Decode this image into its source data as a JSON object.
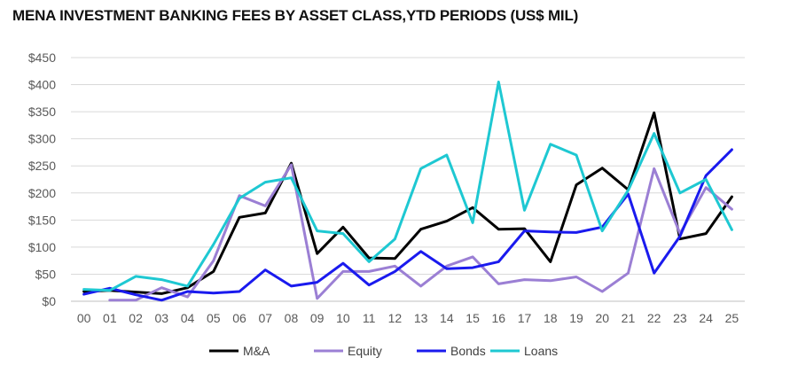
{
  "chart_data": {
    "type": "line",
    "title": "MENA INVESTMENT BANKING FEES BY ASSET CLASS,YTD PERIODS (US$ MIL)",
    "xlabel": "",
    "ylabel": "",
    "categories": [
      "00",
      "01",
      "02",
      "03",
      "04",
      "05",
      "06",
      "07",
      "08",
      "09",
      "10",
      "11",
      "12",
      "13",
      "14",
      "15",
      "16",
      "17",
      "18",
      "19",
      "20",
      "21",
      "22",
      "23",
      "24",
      "25"
    ],
    "ylim": [
      0,
      450
    ],
    "yticks": [
      0,
      50,
      100,
      150,
      200,
      250,
      300,
      350,
      400,
      450
    ],
    "ytick_labels": [
      "$0",
      "$50",
      "$100",
      "$150",
      "$200",
      "$250",
      "$300",
      "$350",
      "$400",
      "$450"
    ],
    "grid": "horizontal",
    "legend_position": "bottom",
    "series": [
      {
        "name": "M&A",
        "color": "#000000",
        "values": [
          18,
          20,
          17,
          14,
          25,
          55,
          155,
          163,
          255,
          88,
          137,
          80,
          79,
          133,
          148,
          173,
          133,
          134,
          73,
          215,
          246,
          206,
          348,
          115,
          125,
          193
        ]
      },
      {
        "name": "Equity",
        "color": "#9b7fd4",
        "values": [
          null,
          2,
          2,
          25,
          8,
          75,
          195,
          176,
          252,
          5,
          55,
          55,
          65,
          28,
          65,
          82,
          32,
          40,
          38,
          45,
          18,
          52,
          245,
          125,
          210,
          170
        ]
      },
      {
        "name": "Bonds",
        "color": "#1a1aee",
        "values": [
          13,
          24,
          12,
          2,
          18,
          15,
          18,
          58,
          28,
          35,
          70,
          30,
          55,
          92,
          60,
          62,
          73,
          130,
          128,
          127,
          137,
          198,
          52,
          120,
          232,
          280
        ]
      },
      {
        "name": "Loans",
        "color": "#1ec8d2",
        "values": [
          22,
          20,
          46,
          40,
          28,
          105,
          190,
          220,
          228,
          130,
          125,
          73,
          115,
          245,
          270,
          145,
          405,
          168,
          290,
          270,
          130,
          205,
          310,
          200,
          225,
          132
        ]
      }
    ]
  }
}
